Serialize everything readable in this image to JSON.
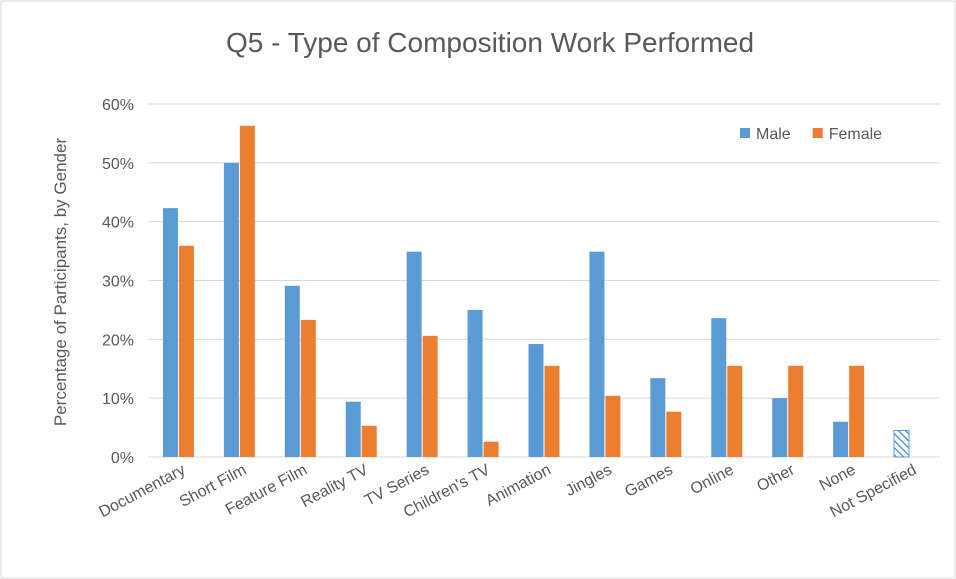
{
  "chart_data": {
    "type": "bar",
    "title": "Q5 - Type of Composition Work Performed",
    "y_label": "Percentage of Participants, by Gender",
    "categories": [
      "Documentary",
      "Short Film",
      "Feature Film",
      "Reality TV",
      "TV Series",
      "Children's TV",
      "Animation",
      "Jingles",
      "Games",
      "Online",
      "Other",
      "None",
      "Not Specified"
    ],
    "series": [
      {
        "name": "Male",
        "color": "#5b9bd5",
        "values": [
          42.3,
          50.0,
          29.1,
          9.4,
          34.9,
          25.0,
          19.2,
          34.9,
          13.4,
          23.6,
          10.0,
          6.0,
          4.5
        ]
      },
      {
        "name": "Female",
        "color": "#ed7d31",
        "values": [
          35.9,
          56.3,
          23.3,
          5.3,
          20.6,
          2.6,
          15.5,
          10.4,
          7.7,
          15.5,
          15.5,
          15.5,
          null
        ]
      }
    ],
    "hatched_index": 12,
    "ylim": [
      0,
      60
    ],
    "yticks": [
      {
        "value": 0,
        "label": "0%"
      },
      {
        "value": 10,
        "label": "10%"
      },
      {
        "value": 20,
        "label": "20%"
      },
      {
        "value": 30,
        "label": "30%"
      },
      {
        "value": 40,
        "label": "40%"
      },
      {
        "value": 50,
        "label": "50%"
      },
      {
        "value": 60,
        "label": "60%"
      }
    ],
    "grid": true,
    "legend": "top-right"
  }
}
